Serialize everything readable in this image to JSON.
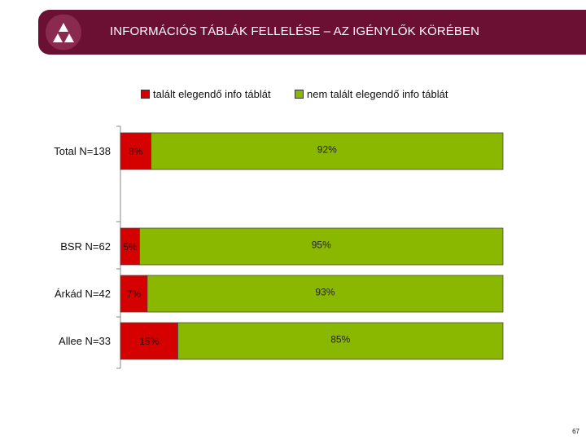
{
  "header": {
    "title": "INFORMÁCIÓS TÁBLÁK FELLELÉSE – AZ IGÉNYLŐK KÖRÉBEN"
  },
  "page_number": "67",
  "colors": {
    "header_bg": "#6b0f33",
    "series_red": "#d50000",
    "series_green": "#8ab800"
  },
  "chart_data": {
    "type": "bar",
    "orientation": "horizontal",
    "stacked": true,
    "percent": true,
    "categories": [
      "Total N=138",
      "BSR N=62",
      "Árkád N=42",
      "Allee N=33"
    ],
    "series": [
      {
        "name": "talált elegendő info táblát",
        "color": "#d50000",
        "values": [
          8,
          5,
          7,
          15
        ],
        "labels": [
          "8%",
          "5%",
          "7%",
          "15%"
        ]
      },
      {
        "name": "nem talált elegendő info táblát",
        "color": "#8ab800",
        "values": [
          92,
          95,
          93,
          85
        ],
        "labels": [
          "92%",
          "95%",
          "93%",
          "85%"
        ]
      }
    ],
    "xlim": [
      0,
      100
    ],
    "legend": "top",
    "grid": false
  }
}
